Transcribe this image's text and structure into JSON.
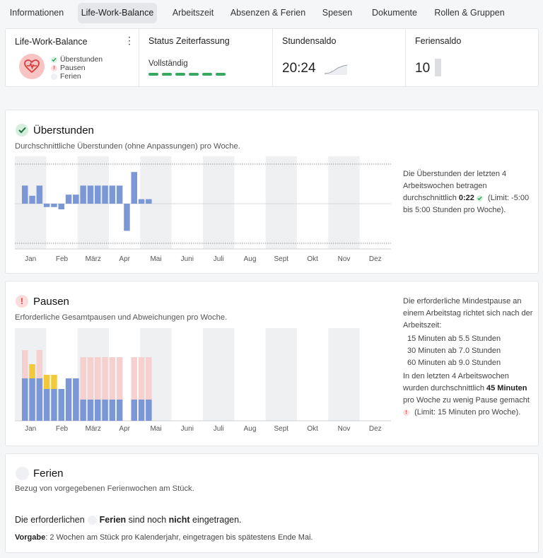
{
  "tabs": [
    {
      "label": "Informationen",
      "active": false
    },
    {
      "label": "Life-Work-Balance",
      "active": true
    },
    {
      "label": "Arbeitszeit",
      "active": false
    },
    {
      "label": "Absenzen & Ferien",
      "active": false
    },
    {
      "label": "Spesen",
      "active": false
    },
    {
      "label": "Dokumente",
      "active": false
    },
    {
      "label": "Rollen & Gruppen",
      "active": false
    }
  ],
  "summary": {
    "lwb": {
      "title": "Life-Work-Balance",
      "legend": [
        "Überstunden",
        "Pausen",
        "Ferien"
      ]
    },
    "status": {
      "title": "Status Zeiterfassung",
      "value": "Vollständig",
      "segments": 6
    },
    "saldo": {
      "title": "Stundensaldo",
      "value": "20:24"
    },
    "ferien": {
      "title": "Feriensaldo",
      "value": "10"
    }
  },
  "colors": {
    "accent": "#7b97d6",
    "ok": "#2e9e5b",
    "warn": "#e04848",
    "pause_red": "#f6cfcf",
    "pause_yellow": "#f1c93b",
    "shade": "#eef0f2"
  },
  "months": [
    "Jan",
    "Feb",
    "März",
    "Apr",
    "Mai",
    "Juni",
    "Juli",
    "Aug",
    "Sept",
    "Okt",
    "Nov",
    "Dez"
  ],
  "ueberstunden": {
    "title": "Überstunden",
    "subtitle": "Durchschnittliche Überstunden (ohne Anpassungen) pro Woche.",
    "side_1": "Die Überstunden der letzten 4 Arbeitswochen betragen durchschnittlich",
    "side_value": "0:22",
    "side_2": "(Limit: -5:00 bis 5:00 Stunden pro Woche)."
  },
  "pausen": {
    "title": "Pausen",
    "subtitle": "Erforderliche Gesamtpausen und Abweichungen pro Woche.",
    "side_intro": "Die erforderliche Mindestpause an einem Arbeitstag richtet sich nach der Arbeitszeit:",
    "rules": [
      "15 Minuten ab 5.5 Stunden",
      "30 Minuten ab 7.0 Stunden",
      "60 Minuten ab 9.0 Stunden"
    ],
    "side_2": "In den letzten 4 Arbeitswochen wurden durchschnittlich",
    "side_value": "45 Minuten",
    "side_3": "pro Woche zu wenig Pause gemacht",
    "side_4": "(Limit: 15 Minuten pro Woche)."
  },
  "ferien": {
    "title": "Ferien",
    "subtitle": "Bezug von vorgegebenen Ferienwochen am Stück.",
    "line_1": "Die erforderlichen",
    "line_bold_1": "Ferien",
    "line_2": "sind noch",
    "line_bold_2": "nicht",
    "line_3": "eingetragen.",
    "vorgabe_label": "Vorgabe",
    "vorgabe_text": ": 2 Wochen am Stück pro Kalenderjahr, eingetragen bis spätestens Ende Mai."
  },
  "chart_data": [
    {
      "type": "bar",
      "name": "ueberstunden",
      "x": [
        "W1",
        "W2",
        "W3",
        "W4",
        "W5",
        "W6",
        "W7",
        "W8",
        "W9",
        "W10",
        "W11",
        "W12",
        "W13",
        "W14",
        "W15",
        "W16",
        "W17",
        "W18",
        "W19"
      ],
      "values": [
        1.6,
        0.7,
        1.6,
        -0.3,
        -0.3,
        -0.5,
        0.8,
        0.8,
        1.6,
        1.6,
        1.6,
        1.6,
        1.6,
        1.6,
        -2.4,
        2.8,
        0.4,
        0.4,
        0
      ],
      "xlabels": [
        "Jan",
        "Feb",
        "März",
        "Apr",
        "Mai",
        "Juni",
        "Juli",
        "Aug",
        "Sept",
        "Okt",
        "Nov",
        "Dez"
      ],
      "ylim": [
        -3,
        3
      ]
    },
    {
      "type": "bar",
      "name": "pausen",
      "x": [
        "W1",
        "W2",
        "W3",
        "W4",
        "W5",
        "W6",
        "W7",
        "W8",
        "W9",
        "W10",
        "W11",
        "W12",
        "W13",
        "W14",
        "W15",
        "W16",
        "W17",
        "W18",
        "W19"
      ],
      "series": [
        {
          "name": "base",
          "values": [
            60,
            60,
            60,
            45,
            45,
            45,
            60,
            60,
            30,
            30,
            30,
            30,
            30,
            30,
            0,
            30,
            30,
            30,
            0
          ]
        },
        {
          "name": "yellow",
          "values": [
            0,
            20,
            0,
            20,
            20,
            0,
            0,
            0,
            0,
            0,
            0,
            0,
            0,
            0,
            0,
            0,
            0,
            0,
            0
          ]
        },
        {
          "name": "red",
          "values": [
            40,
            0,
            40,
            0,
            0,
            0,
            0,
            0,
            60,
            60,
            60,
            60,
            60,
            60,
            0,
            60,
            60,
            60,
            0
          ]
        }
      ],
      "ylim": [
        0,
        100
      ]
    }
  ]
}
